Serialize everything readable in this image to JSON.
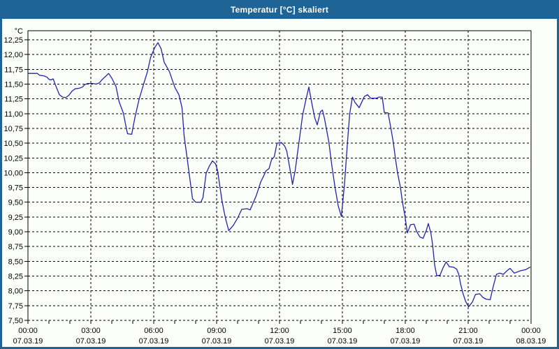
{
  "window": {
    "title": "Temperatur [°C] skaliert"
  },
  "colors": {
    "titlebar": "#1E6497",
    "window_border": "#1E6497",
    "content_background": "#FCFEF9",
    "line": "#2222AC",
    "grid": "#000000",
    "text": "#000000"
  },
  "chart_data": {
    "type": "line",
    "title": "Temperatur [°C] skaliert",
    "unit_label": "°C",
    "ylabel": "°C",
    "ylim": [
      7.5,
      12.25
    ],
    "ytick_step": 0.25,
    "ytick_labels": [
      "12,25",
      "12,00",
      "11,75",
      "11,50",
      "11,25",
      "11,00",
      "10,75",
      "10,50",
      "10,25",
      "10,00",
      "9,75",
      "9,50",
      "9,25",
      "9,00",
      "8,75",
      "8,50",
      "8,25",
      "8,00",
      "7,75",
      "7,50"
    ],
    "xlim_hours": [
      0,
      24
    ],
    "xtick_interval_hours": 3,
    "minor_xtick_interval_hours": 1,
    "grid": "dashed",
    "legend": "none",
    "xticks": [
      {
        "time": "00:00",
        "date": "07.03.19"
      },
      {
        "time": "03:00",
        "date": "07.03.19"
      },
      {
        "time": "06:00",
        "date": "07.03.19"
      },
      {
        "time": "09:00",
        "date": "07.03.19"
      },
      {
        "time": "12:00",
        "date": "07.03.19"
      },
      {
        "time": "15:00",
        "date": "07.03.19"
      },
      {
        "time": "18:00",
        "date": "07.03.19"
      },
      {
        "time": "21:00",
        "date": "07.03.19"
      },
      {
        "time": "00:00",
        "date": "08.03.19"
      }
    ],
    "series": [
      {
        "name": "Temperatur",
        "color": "#2222AC",
        "points": [
          [
            0.0,
            11.68
          ],
          [
            0.45,
            11.68
          ],
          [
            0.55,
            11.65
          ],
          [
            0.75,
            11.64
          ],
          [
            0.9,
            11.62
          ],
          [
            1.0,
            11.58
          ],
          [
            1.1,
            11.57
          ],
          [
            1.2,
            11.59
          ],
          [
            1.35,
            11.45
          ],
          [
            1.5,
            11.32
          ],
          [
            1.65,
            11.28
          ],
          [
            1.8,
            11.27
          ],
          [
            1.95,
            11.31
          ],
          [
            2.1,
            11.38
          ],
          [
            2.25,
            11.42
          ],
          [
            2.45,
            11.43
          ],
          [
            2.6,
            11.45
          ],
          [
            2.7,
            11.49
          ],
          [
            2.85,
            11.51
          ],
          [
            3.1,
            11.51
          ],
          [
            3.25,
            11.5
          ],
          [
            3.4,
            11.52
          ],
          [
            3.55,
            11.58
          ],
          [
            3.7,
            11.63
          ],
          [
            3.85,
            11.68
          ],
          [
            4.0,
            11.6
          ],
          [
            4.2,
            11.46
          ],
          [
            4.35,
            11.2
          ],
          [
            4.55,
            11.01
          ],
          [
            4.65,
            10.83
          ],
          [
            4.75,
            10.66
          ],
          [
            4.95,
            10.65
          ],
          [
            5.1,
            10.93
          ],
          [
            5.3,
            11.24
          ],
          [
            5.5,
            11.48
          ],
          [
            5.7,
            11.71
          ],
          [
            5.85,
            11.95
          ],
          [
            6.05,
            12.12
          ],
          [
            6.2,
            12.2
          ],
          [
            6.35,
            12.1
          ],
          [
            6.5,
            11.87
          ],
          [
            6.75,
            11.71
          ],
          [
            7.0,
            11.45
          ],
          [
            7.2,
            11.32
          ],
          [
            7.35,
            11.1
          ],
          [
            7.45,
            10.62
          ],
          [
            7.6,
            10.23
          ],
          [
            7.73,
            9.88
          ],
          [
            7.85,
            9.56
          ],
          [
            8.0,
            9.5
          ],
          [
            8.25,
            9.5
          ],
          [
            8.35,
            9.58
          ],
          [
            8.5,
            9.99
          ],
          [
            8.65,
            10.11
          ],
          [
            8.8,
            10.2
          ],
          [
            8.95,
            10.15
          ],
          [
            9.05,
            10.03
          ],
          [
            9.15,
            9.78
          ],
          [
            9.25,
            9.54
          ],
          [
            9.35,
            9.35
          ],
          [
            9.45,
            9.19
          ],
          [
            9.58,
            9.02
          ],
          [
            9.8,
            9.11
          ],
          [
            10.0,
            9.23
          ],
          [
            10.2,
            9.38
          ],
          [
            10.45,
            9.39
          ],
          [
            10.6,
            9.37
          ],
          [
            10.9,
            9.62
          ],
          [
            11.1,
            9.84
          ],
          [
            11.25,
            9.95
          ],
          [
            11.35,
            10.03
          ],
          [
            11.5,
            10.07
          ],
          [
            11.62,
            10.22
          ],
          [
            11.75,
            10.27
          ],
          [
            11.88,
            10.5
          ],
          [
            12.1,
            10.51
          ],
          [
            12.25,
            10.45
          ],
          [
            12.35,
            10.36
          ],
          [
            12.45,
            10.16
          ],
          [
            12.55,
            9.96
          ],
          [
            12.62,
            9.8
          ],
          [
            12.75,
            10.04
          ],
          [
            12.85,
            10.31
          ],
          [
            12.95,
            10.57
          ],
          [
            13.1,
            10.97
          ],
          [
            13.25,
            11.22
          ],
          [
            13.4,
            11.45
          ],
          [
            13.55,
            11.16
          ],
          [
            13.68,
            10.93
          ],
          [
            13.8,
            10.81
          ],
          [
            13.95,
            11.03
          ],
          [
            14.05,
            11.06
          ],
          [
            14.15,
            10.91
          ],
          [
            14.35,
            10.53
          ],
          [
            14.5,
            10.11
          ],
          [
            14.65,
            9.75
          ],
          [
            14.8,
            9.44
          ],
          [
            14.95,
            9.26
          ],
          [
            15.1,
            9.8
          ],
          [
            15.25,
            10.55
          ],
          [
            15.35,
            11.0
          ],
          [
            15.48,
            11.28
          ],
          [
            15.6,
            11.19
          ],
          [
            15.8,
            11.1
          ],
          [
            16.05,
            11.29
          ],
          [
            16.2,
            11.32
          ],
          [
            16.35,
            11.26
          ],
          [
            16.6,
            11.26
          ],
          [
            16.75,
            11.28
          ],
          [
            16.9,
            11.28
          ],
          [
            17.0,
            11.02
          ],
          [
            17.18,
            11.01
          ],
          [
            17.3,
            10.78
          ],
          [
            17.43,
            10.51
          ],
          [
            17.53,
            10.24
          ],
          [
            17.63,
            10.0
          ],
          [
            17.77,
            9.75
          ],
          [
            17.87,
            9.49
          ],
          [
            17.97,
            9.3
          ],
          [
            18.1,
            8.98
          ],
          [
            18.25,
            9.12
          ],
          [
            18.42,
            9.13
          ],
          [
            18.55,
            9.0
          ],
          [
            18.7,
            8.91
          ],
          [
            18.85,
            8.89
          ],
          [
            19.0,
            9.02
          ],
          [
            19.1,
            9.14
          ],
          [
            19.22,
            8.98
          ],
          [
            19.3,
            8.79
          ],
          [
            19.4,
            8.44
          ],
          [
            19.5,
            8.26
          ],
          [
            19.65,
            8.26
          ],
          [
            19.8,
            8.39
          ],
          [
            19.95,
            8.49
          ],
          [
            20.1,
            8.41
          ],
          [
            20.3,
            8.4
          ],
          [
            20.45,
            8.37
          ],
          [
            20.55,
            8.28
          ],
          [
            20.65,
            8.1
          ],
          [
            20.75,
            7.96
          ],
          [
            20.88,
            7.82
          ],
          [
            21.02,
            7.73
          ],
          [
            21.2,
            7.81
          ],
          [
            21.35,
            7.94
          ],
          [
            21.55,
            7.95
          ],
          [
            21.7,
            7.89
          ],
          [
            21.85,
            7.86
          ],
          [
            22.05,
            7.85
          ],
          [
            22.2,
            8.08
          ],
          [
            22.35,
            8.28
          ],
          [
            22.5,
            8.3
          ],
          [
            22.68,
            8.28
          ],
          [
            22.85,
            8.34
          ],
          [
            23.0,
            8.38
          ],
          [
            23.2,
            8.3
          ],
          [
            23.5,
            8.34
          ],
          [
            23.75,
            8.36
          ],
          [
            23.95,
            8.4
          ]
        ]
      }
    ]
  }
}
